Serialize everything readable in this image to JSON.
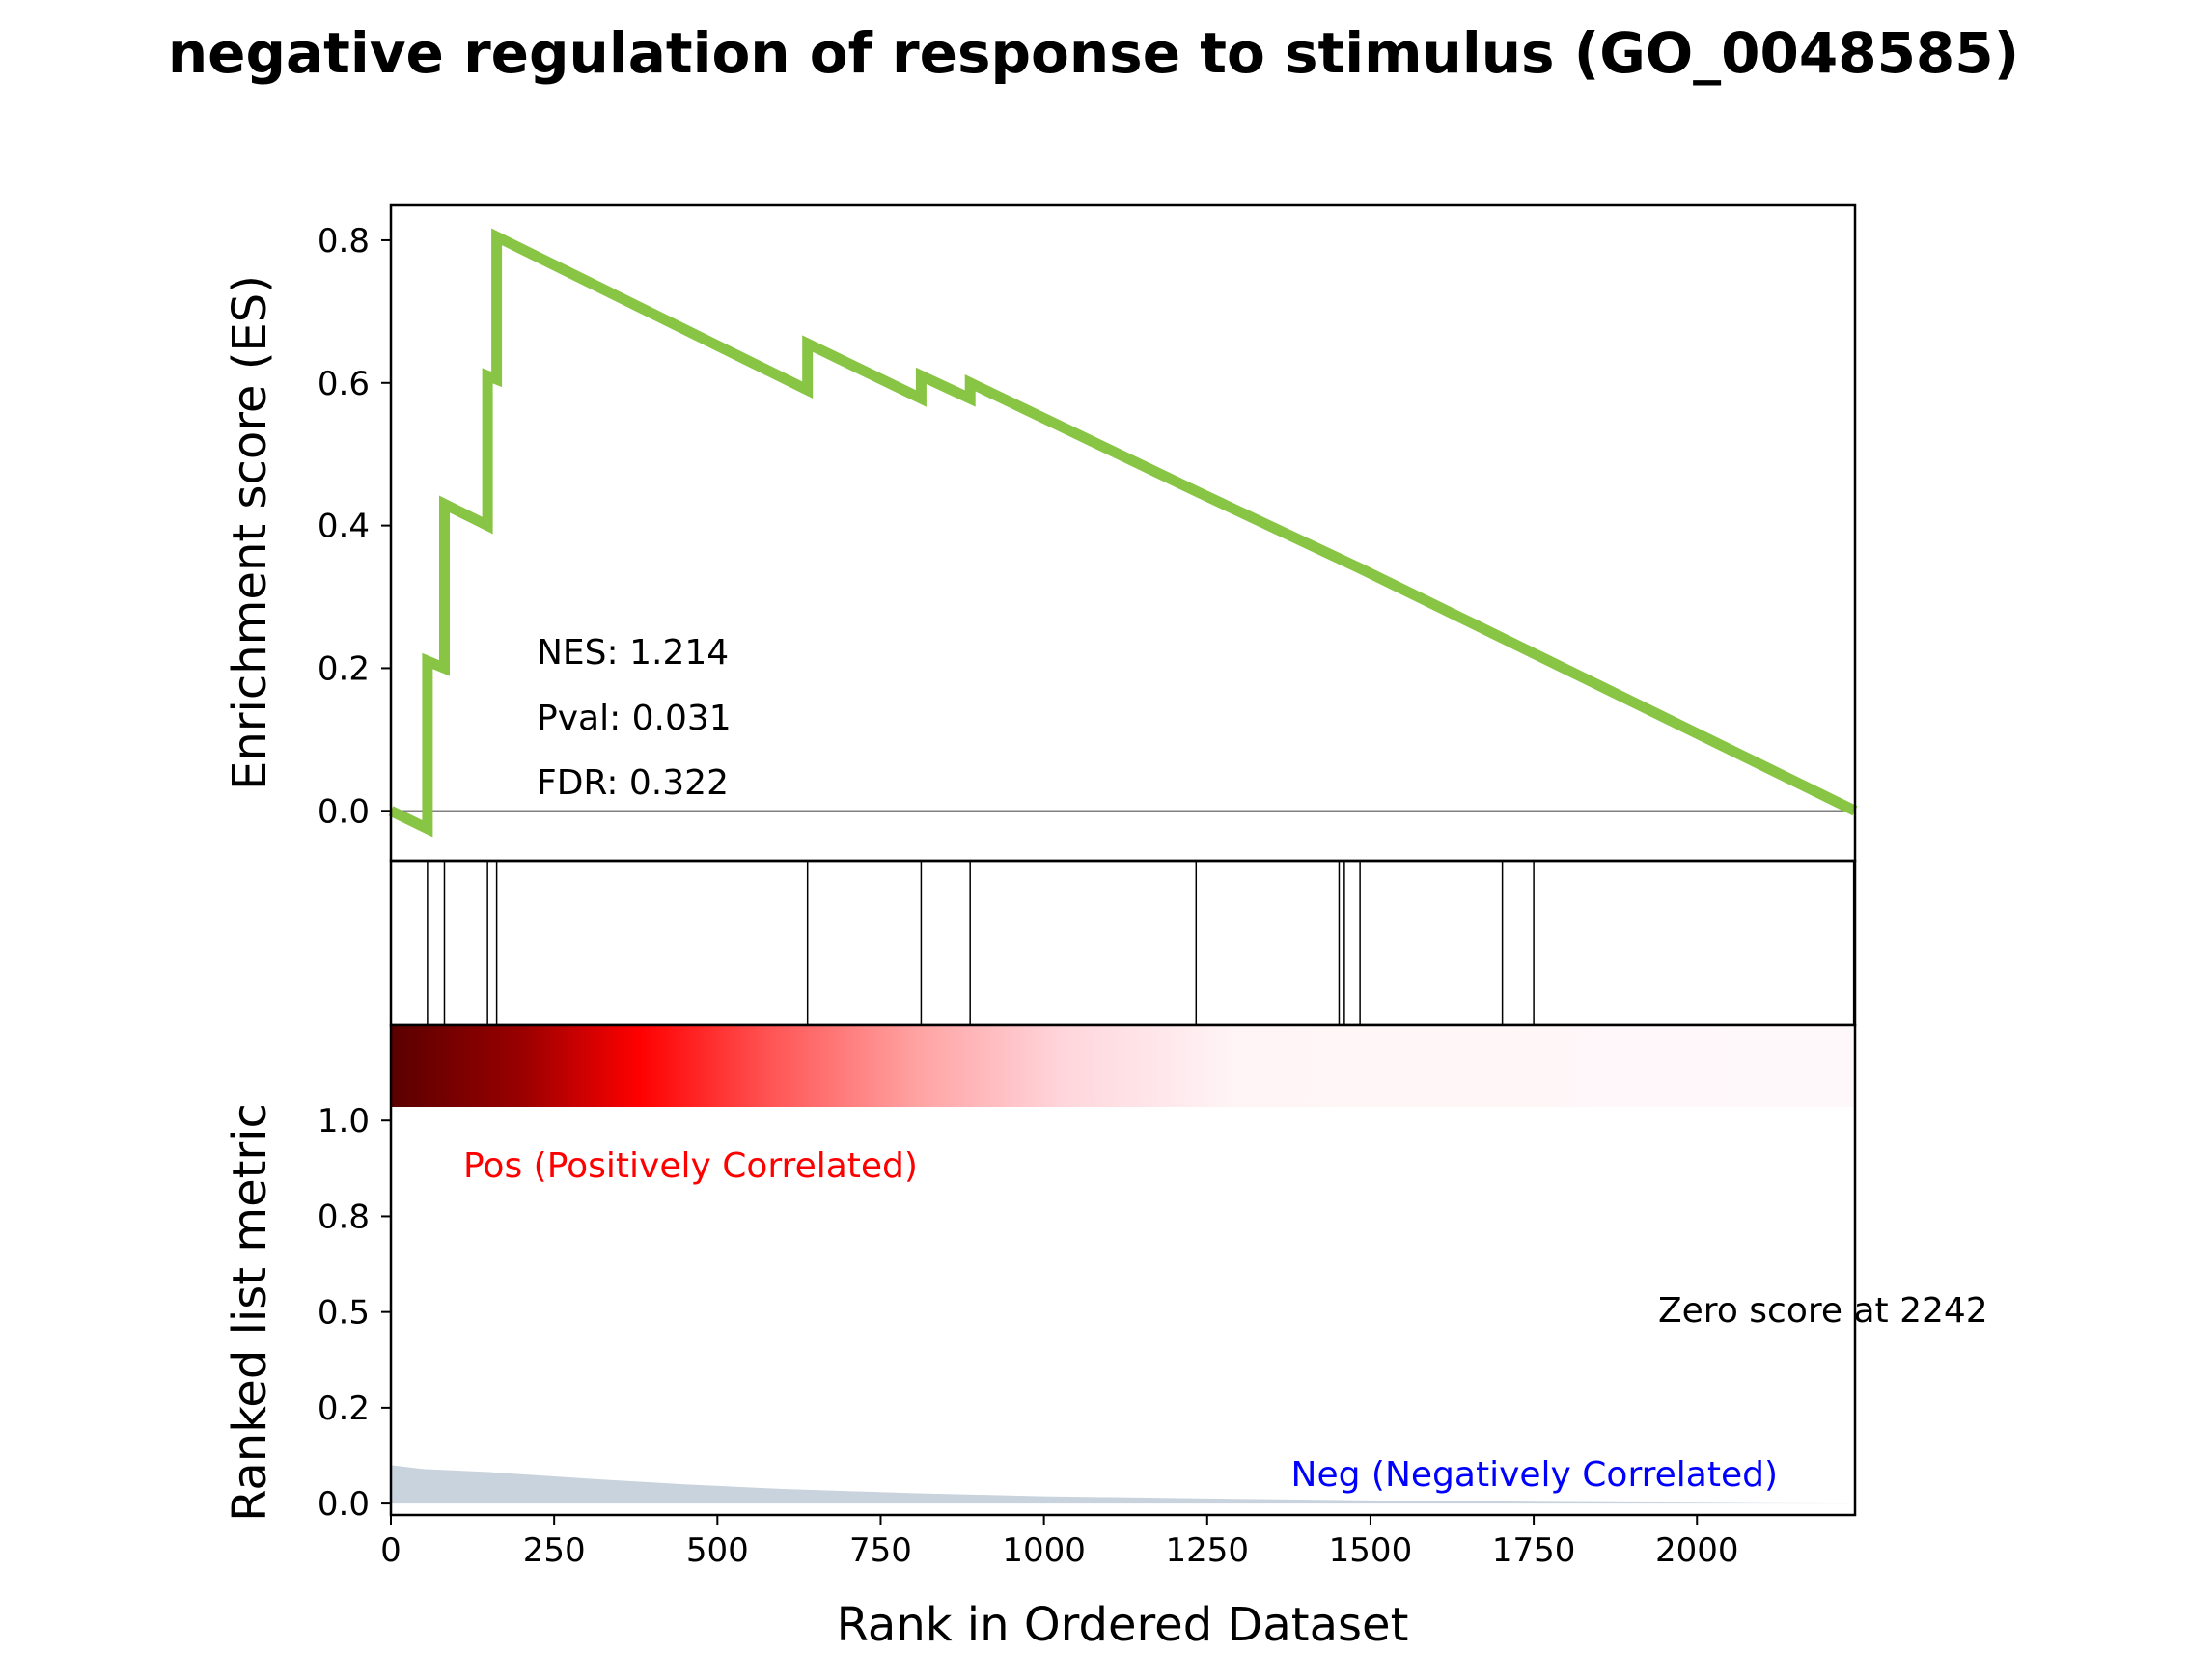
{
  "title": "negative regulation of response to stimulus (GO_0048585)",
  "colors": {
    "es_line": "#88c544",
    "hits": "#000000",
    "zero_line": "#808080",
    "metric_fill": "#c9d3dd",
    "pos_label": "#ff0000",
    "neg_label": "#0000ff",
    "heat_dark": "#8b0000",
    "heat_mid": "#ff0000",
    "heat_light": "#fff5f7"
  },
  "stats": {
    "nes": "NES: 1.214",
    "pval": "Pval: 0.031",
    "fdr": "FDR: 0.322"
  },
  "labels": {
    "pos": "Pos (Positively Correlated)",
    "neg": "Neg (Negatively Correlated)",
    "zero": "Zero score at 2242"
  },
  "chart_data": [
    {
      "type": "line",
      "ylabel": "Enrichment score (ES)",
      "xlim": [
        0,
        2242
      ],
      "ylim": [
        -0.07,
        0.85
      ],
      "yticks": [
        0.0,
        0.2,
        0.4,
        0.6,
        0.8
      ],
      "ytick_labels": [
        "0.0",
        "0.2",
        "0.4",
        "0.6",
        "0.8"
      ],
      "grid": false,
      "series": [
        {
          "x": [
            0,
            56,
            56,
            82,
            82,
            148,
            148,
            162,
            162,
            638,
            638,
            812,
            812,
            887,
            887,
            1233,
            1456,
            1484,
            2242
          ],
          "values": [
            0.0,
            -0.025,
            0.21,
            0.2,
            0.43,
            0.4,
            0.61,
            0.605,
            0.805,
            0.59,
            0.655,
            0.578,
            0.61,
            0.578,
            0.6,
            0.448,
            0.352,
            0.34,
            0.0
          ]
        }
      ]
    },
    {
      "type": "scatter",
      "description_free": true,
      "hit_ranks": [
        56,
        82,
        148,
        162,
        638,
        812,
        887,
        1233,
        1452,
        1460,
        1484,
        1702,
        1750,
        2240
      ]
    },
    {
      "type": "area",
      "ylabel": "Ranked list metric",
      "xlabel": "Rank in Ordered Dataset",
      "xlim": [
        0,
        2242
      ],
      "ylim": [
        -0.03,
        1.25
      ],
      "xticks": [
        0,
        250,
        500,
        750,
        1000,
        1250,
        1500,
        1750,
        2000
      ],
      "xtick_labels": [
        "0",
        "250",
        "500",
        "750",
        "1000",
        "1250",
        "1500",
        "1750",
        "2000"
      ],
      "yticks": [
        0.0,
        0.25,
        0.5,
        0.75,
        1.0
      ],
      "ytick_labels": [
        "0.0",
        "0.2",
        "0.5",
        "0.8",
        "1.0"
      ],
      "series": [
        {
          "x": [
            0,
            50,
            150,
            300,
            450,
            600,
            800,
            1000,
            1250,
            1500,
            1800,
            2100,
            2242
          ],
          "values": [
            0.1,
            0.09,
            0.082,
            0.065,
            0.05,
            0.038,
            0.027,
            0.019,
            0.013,
            0.008,
            0.004,
            0.001,
            0.0
          ]
        }
      ]
    }
  ]
}
